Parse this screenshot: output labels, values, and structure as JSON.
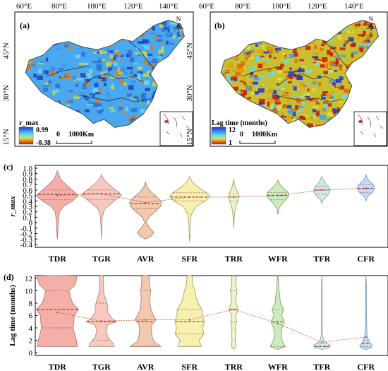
{
  "maps": [
    {
      "panel": "(a)",
      "lon_ticks": [
        "60°E",
        "80°E",
        "100°E",
        "120°E",
        "140°E"
      ],
      "lat_ticks": [
        "45°N",
        "30°N",
        "15°N"
      ],
      "legend_title": "r_max",
      "legend_max": "0.99",
      "legend_min": "-0.38",
      "scale_zero": "0",
      "scale_label": "1000Km",
      "compass_n": "N",
      "compass_s": "S",
      "colors": [
        "#1f3fbf",
        "#3fa0f0",
        "#66ddee",
        "#d8e24a",
        "#e06a10",
        "#cc1a00"
      ]
    },
    {
      "panel": "(b)",
      "lon_ticks": [
        "60°E",
        "80°E",
        "100°E",
        "120°E",
        "140°E"
      ],
      "lat_ticks": [
        "45°N",
        "30°N",
        "15°N"
      ],
      "legend_title": "Lag time (months)",
      "legend_max": "12",
      "legend_min": "1",
      "scale_zero": "0",
      "scale_label": "1000Km",
      "compass_n": "N",
      "compass_s": "S",
      "colors": [
        "#2233cc",
        "#3fa0f0",
        "#66ddee",
        "#d8e24a",
        "#e06a10",
        "#cc1a00"
      ]
    }
  ],
  "chart_data": [
    {
      "type": "violin",
      "panel": "(c)",
      "ylabel": "r_max",
      "ylim": [
        -0.4,
        1.0
      ],
      "yticks": [
        -0.4,
        -0.3,
        -0.2,
        -0.1,
        0,
        0.1,
        0.2,
        0.3,
        0.4,
        0.5,
        0.6,
        0.7,
        0.8,
        0.9,
        1.0
      ],
      "ytick_labels": [
        "-0.4",
        "-0.3",
        "-0.2",
        "-0.1",
        "0",
        "0.1",
        "0.2",
        "0.3",
        "0.4",
        "0.5",
        "0.6",
        "0.7",
        "0.8",
        "0.9",
        "1.0"
      ],
      "categories": [
        "TDR",
        "TGR",
        "AVR",
        "SFR",
        "TRR",
        "WFR",
        "TFR",
        "CFR"
      ],
      "colors": [
        "#f4b0a8",
        "#f6c8be",
        "#f2c8ae",
        "#f7f0b0",
        "#eef2cc",
        "#ccecc0",
        "#d4eae0",
        "#c4dcf2"
      ],
      "edge_colors": [
        "#b07070",
        "#b08078",
        "#a07a60",
        "#a09a50",
        "#8a9a58",
        "#70a060",
        "#80a898",
        "#7898b8"
      ],
      "mean": [
        0.5,
        0.53,
        0.37,
        0.47,
        0.47,
        0.5,
        0.6,
        0.63
      ],
      "quartiles": [
        [
          0.42,
          0.52,
          0.6
        ],
        [
          0.43,
          0.53,
          0.6
        ],
        [
          0.26,
          0.35,
          0.47
        ],
        [
          0.4,
          0.47,
          0.55
        ],
        [
          0.4,
          0.47,
          0.53
        ],
        [
          0.42,
          0.5,
          0.55
        ],
        [
          0.52,
          0.6,
          0.67
        ],
        [
          0.55,
          0.63,
          0.7
        ]
      ],
      "profiles": [
        [
          [
            -0.3,
            0
          ],
          [
            -0.2,
            0.02
          ],
          [
            0,
            0.04
          ],
          [
            0.2,
            0.1
          ],
          [
            0.3,
            0.3
          ],
          [
            0.4,
            0.72
          ],
          [
            0.5,
            1.0
          ],
          [
            0.6,
            0.7
          ],
          [
            0.7,
            0.4
          ],
          [
            0.8,
            0.15
          ],
          [
            0.9,
            0.05
          ],
          [
            0.95,
            0
          ]
        ],
        [
          [
            -0.3,
            0
          ],
          [
            -0.1,
            0.02
          ],
          [
            0.1,
            0.04
          ],
          [
            0.25,
            0.15
          ],
          [
            0.4,
            0.6
          ],
          [
            0.5,
            0.95
          ],
          [
            0.55,
            0.85
          ],
          [
            0.6,
            0.68
          ],
          [
            0.7,
            0.35
          ],
          [
            0.8,
            0.1
          ],
          [
            0.88,
            0
          ]
        ],
        [
          [
            -0.3,
            0
          ],
          [
            -0.25,
            0.25
          ],
          [
            -0.18,
            0.4
          ],
          [
            -0.1,
            0.2
          ],
          [
            0.0,
            0.04
          ],
          [
            0.1,
            0.15
          ],
          [
            0.2,
            0.45
          ],
          [
            0.3,
            0.72
          ],
          [
            0.38,
            0.75
          ],
          [
            0.45,
            0.6
          ],
          [
            0.55,
            0.3
          ],
          [
            0.65,
            0.08
          ],
          [
            0.75,
            0
          ]
        ],
        [
          [
            -0.35,
            0
          ],
          [
            -0.2,
            0.02
          ],
          [
            0.0,
            0.04
          ],
          [
            0.15,
            0.08
          ],
          [
            0.3,
            0.3
          ],
          [
            0.4,
            0.75
          ],
          [
            0.48,
            0.95
          ],
          [
            0.55,
            0.8
          ],
          [
            0.65,
            0.4
          ],
          [
            0.75,
            0.12
          ],
          [
            0.85,
            0
          ]
        ],
        [
          [
            -0.1,
            0
          ],
          [
            0.05,
            0.02
          ],
          [
            0.2,
            0.05
          ],
          [
            0.3,
            0.1
          ],
          [
            0.4,
            0.2
          ],
          [
            0.48,
            0.26
          ],
          [
            0.55,
            0.2
          ],
          [
            0.65,
            0.08
          ],
          [
            0.75,
            0.02
          ],
          [
            0.8,
            0
          ]
        ],
        [
          [
            0.15,
            0
          ],
          [
            0.25,
            0.04
          ],
          [
            0.35,
            0.2
          ],
          [
            0.45,
            0.45
          ],
          [
            0.5,
            0.52
          ],
          [
            0.55,
            0.5
          ],
          [
            0.62,
            0.3
          ],
          [
            0.7,
            0.1
          ],
          [
            0.78,
            0
          ]
        ],
        [
          [
            0.35,
            0
          ],
          [
            0.42,
            0.06
          ],
          [
            0.5,
            0.28
          ],
          [
            0.58,
            0.4
          ],
          [
            0.65,
            0.35
          ],
          [
            0.72,
            0.18
          ],
          [
            0.8,
            0.06
          ],
          [
            0.85,
            0
          ]
        ],
        [
          [
            0.4,
            0
          ],
          [
            0.48,
            0.08
          ],
          [
            0.55,
            0.3
          ],
          [
            0.62,
            0.42
          ],
          [
            0.68,
            0.38
          ],
          [
            0.75,
            0.2
          ],
          [
            0.82,
            0.05
          ],
          [
            0.88,
            0
          ]
        ]
      ]
    },
    {
      "type": "violin",
      "panel": "(d)",
      "ylabel": "Lag time (months)",
      "ylim": [
        0,
        12
      ],
      "yticks": [
        0,
        2,
        4,
        6,
        8,
        10,
        12
      ],
      "ytick_labels": [
        "0",
        "2",
        "4",
        "6",
        "8",
        "10",
        "12"
      ],
      "categories": [
        "TDR",
        "TGR",
        "AVR",
        "SFR",
        "TRR",
        "WFR",
        "TFR",
        "CFR"
      ],
      "colors": [
        "#f4b0a8",
        "#f6c8be",
        "#f2c8ae",
        "#f7f0b0",
        "#eef2cc",
        "#ccecc0",
        "#d4eae0",
        "#c4dcf2"
      ],
      "edge_colors": [
        "#b07070",
        "#b08078",
        "#a07a60",
        "#a09a50",
        "#8a9a58",
        "#70a060",
        "#80a898",
        "#7898b8"
      ],
      "mean": [
        6.5,
        5.1,
        5.3,
        5.3,
        7.0,
        4.7,
        1.7,
        2.5
      ],
      "quartiles": [
        [
          4.0,
          7.0,
          10.0
        ],
        [
          2.0,
          5.0,
          8.0
        ],
        [
          1.0,
          5.0,
          10.0
        ],
        [
          3.0,
          5.0,
          7.0
        ],
        [
          5.0,
          7.0,
          10.0
        ],
        [
          1.0,
          5.0,
          7.0
        ],
        [
          1.0,
          1.0,
          1.5
        ],
        [
          1.0,
          1.5,
          2.0
        ]
      ],
      "profiles": [
        [
          [
            1,
            0.95
          ],
          [
            2,
            0.9
          ],
          [
            3,
            0.82
          ],
          [
            4,
            0.75
          ],
          [
            5,
            0.78
          ],
          [
            6,
            0.8
          ],
          [
            7,
            1.0
          ],
          [
            8,
            0.72
          ],
          [
            9,
            0.62
          ],
          [
            10,
            0.55
          ],
          [
            11,
            0.85
          ],
          [
            12,
            0.92
          ],
          [
            12.4,
            0.92
          ],
          [
            12.5,
            0
          ]
        ],
        [
          [
            1,
            0.6
          ],
          [
            1.5,
            0.55
          ],
          [
            2.5,
            0.3
          ],
          [
            3.5,
            0.22
          ],
          [
            4.5,
            0.3
          ],
          [
            5,
            0.72
          ],
          [
            5.5,
            0.5
          ],
          [
            6.5,
            0.3
          ],
          [
            7.5,
            0.3
          ],
          [
            8.5,
            0.22
          ],
          [
            9.5,
            0.12
          ],
          [
            10.5,
            0.1
          ],
          [
            11.5,
            0.1
          ],
          [
            12.4,
            0.1
          ],
          [
            12.5,
            0
          ]
        ],
        [
          [
            1,
            0.72
          ],
          [
            1.8,
            0.4
          ],
          [
            2.5,
            0.32
          ],
          [
            3.5,
            0.28
          ],
          [
            4.5,
            0.3
          ],
          [
            5.3,
            0.5
          ],
          [
            6,
            0.38
          ],
          [
            7,
            0.25
          ],
          [
            8,
            0.22
          ],
          [
            9,
            0.2
          ],
          [
            10,
            0.25
          ],
          [
            11,
            0.18
          ],
          [
            12.4,
            0.18
          ],
          [
            12.5,
            0
          ]
        ],
        [
          [
            1,
            0.55
          ],
          [
            2,
            0.45
          ],
          [
            3,
            0.68
          ],
          [
            4,
            0.62
          ],
          [
            5,
            0.7
          ],
          [
            6,
            0.6
          ],
          [
            7,
            0.58
          ],
          [
            8,
            0.4
          ],
          [
            9,
            0.3
          ],
          [
            10,
            0.25
          ],
          [
            11,
            0.15
          ],
          [
            12.4,
            0.12
          ],
          [
            12.5,
            0
          ]
        ],
        [
          [
            0.5,
            0
          ],
          [
            1,
            0.1
          ],
          [
            2,
            0.08
          ],
          [
            3,
            0.1
          ],
          [
            4,
            0.08
          ],
          [
            5,
            0.14
          ],
          [
            6,
            0.1
          ],
          [
            7,
            0.22
          ],
          [
            8,
            0.12
          ],
          [
            9,
            0.1
          ],
          [
            10,
            0.16
          ],
          [
            11,
            0.1
          ],
          [
            12.3,
            0.1
          ],
          [
            12.5,
            0
          ]
        ],
        [
          [
            0.5,
            0
          ],
          [
            1,
            0.35
          ],
          [
            2,
            0.2
          ],
          [
            3,
            0.15
          ],
          [
            4,
            0.2
          ],
          [
            5,
            0.32
          ],
          [
            6,
            0.18
          ],
          [
            7,
            0.28
          ],
          [
            8,
            0.12
          ],
          [
            9,
            0.1
          ],
          [
            10,
            0.06
          ],
          [
            11,
            0.04
          ],
          [
            12,
            0.03
          ],
          [
            12.5,
            0
          ]
        ],
        [
          [
            0.5,
            0
          ],
          [
            0.8,
            0.35
          ],
          [
            1.2,
            0.4
          ],
          [
            1.6,
            0.2
          ],
          [
            2,
            0.08
          ],
          [
            3,
            0.03
          ],
          [
            5,
            0.02
          ],
          [
            8,
            0.02
          ],
          [
            11,
            0.02
          ],
          [
            12.5,
            0
          ]
        ],
        [
          [
            0.5,
            0
          ],
          [
            0.8,
            0.25
          ],
          [
            1.2,
            0.3
          ],
          [
            1.6,
            0.2
          ],
          [
            2.2,
            0.1
          ],
          [
            3,
            0.05
          ],
          [
            5,
            0.03
          ],
          [
            8,
            0.02
          ],
          [
            11,
            0.02
          ],
          [
            12.5,
            0
          ]
        ]
      ]
    }
  ]
}
